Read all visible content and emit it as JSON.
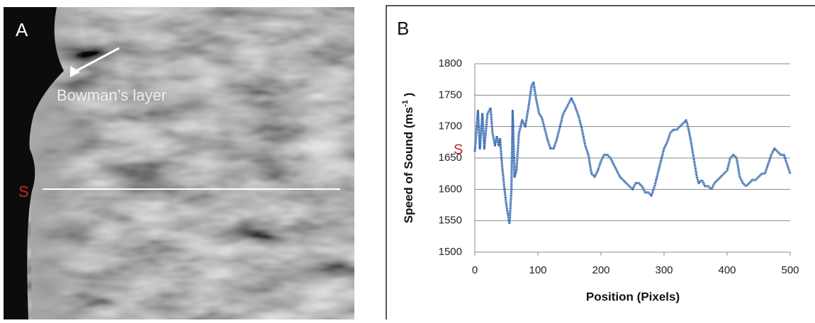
{
  "panel_a": {
    "label": "A",
    "annotation": "Bowman’s layer",
    "marker": "S"
  },
  "chart_data": {
    "type": "line",
    "panel_label": "B",
    "annotation": "S",
    "x_label": "Position (Pixels)",
    "y_label": "Speed of Sound (ms",
    "y_label_sup": "-1",
    "y_label_end": " )",
    "xlim": [
      0,
      500
    ],
    "xticks": [
      0,
      100,
      200,
      300,
      400,
      500
    ],
    "ylim": [
      1500,
      1800
    ],
    "yticks": [
      1500,
      1550,
      1600,
      1650,
      1700,
      1750,
      1800
    ],
    "grid": true,
    "x": [
      0,
      3,
      5,
      8,
      12,
      15,
      20,
      25,
      28,
      32,
      35,
      38,
      40,
      43,
      46,
      50,
      55,
      58,
      60,
      63,
      66,
      70,
      75,
      80,
      85,
      90,
      93,
      97,
      102,
      106,
      110,
      115,
      120,
      125,
      130,
      135,
      140,
      148,
      153,
      158,
      165,
      170,
      175,
      180,
      185,
      190,
      195,
      200,
      205,
      210,
      215,
      220,
      225,
      230,
      240,
      245,
      250,
      255,
      260,
      265,
      270,
      275,
      280,
      285,
      290,
      295,
      300,
      305,
      310,
      315,
      320,
      325,
      330,
      335,
      338,
      342,
      347,
      352,
      355,
      360,
      365,
      370,
      375,
      380,
      385,
      390,
      395,
      400,
      405,
      410,
      415,
      420,
      425,
      430,
      435,
      440,
      445,
      450,
      455,
      460,
      465,
      470,
      475,
      480,
      485,
      490,
      495,
      500
    ],
    "series": [
      {
        "color": "#3c6fb4",
        "values": [
          1660,
          1700,
          1725,
          1665,
          1720,
          1665,
          1720,
          1730,
          1690,
          1670,
          1685,
          1670,
          1680,
          1640,
          1610,
          1575,
          1545,
          1600,
          1725,
          1620,
          1630,
          1690,
          1710,
          1700,
          1730,
          1765,
          1770,
          1745,
          1720,
          1715,
          1700,
          1680,
          1665,
          1665,
          1680,
          1700,
          1720,
          1735,
          1745,
          1735,
          1715,
          1695,
          1670,
          1655,
          1625,
          1620,
          1630,
          1645,
          1655,
          1655,
          1650,
          1640,
          1630,
          1620,
          1610,
          1605,
          1600,
          1610,
          1610,
          1605,
          1595,
          1595,
          1590,
          1605,
          1625,
          1645,
          1665,
          1675,
          1690,
          1695,
          1695,
          1700,
          1705,
          1710,
          1700,
          1680,
          1650,
          1620,
          1610,
          1615,
          1605,
          1605,
          1600,
          1610,
          1615,
          1620,
          1625,
          1630,
          1650,
          1655,
          1650,
          1620,
          1610,
          1605,
          1610,
          1615,
          1615,
          1620,
          1625,
          1625,
          1640,
          1655,
          1665,
          1660,
          1655,
          1655,
          1640,
          1625
        ]
      }
    ]
  }
}
